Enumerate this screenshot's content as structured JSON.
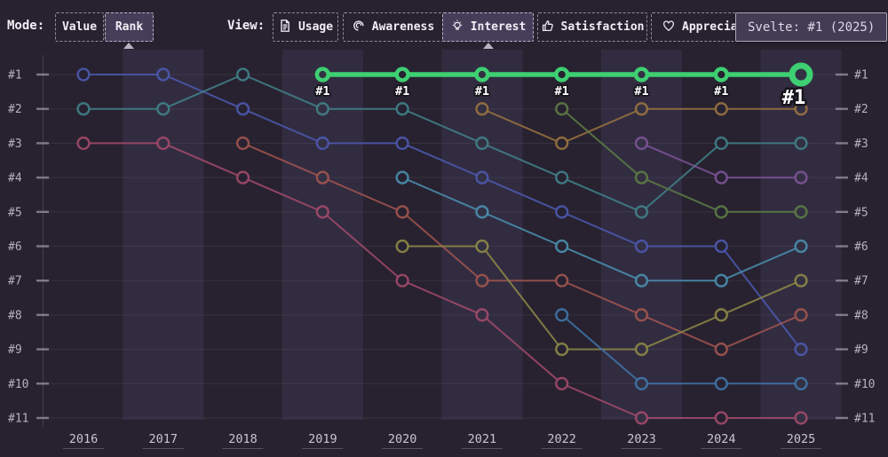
{
  "toolbar": {
    "mode_label": "Mode:",
    "modes": [
      {
        "label": "Value",
        "selected": false
      },
      {
        "label": "Rank",
        "selected": true
      }
    ],
    "view_label": "View:",
    "views": [
      {
        "label": "Usage",
        "icon": "document-icon",
        "selected": false
      },
      {
        "label": "Awareness",
        "icon": "ear-icon",
        "selected": false
      },
      {
        "label": "Interest",
        "icon": "lightbulb-icon",
        "selected": true
      },
      {
        "label": "Satisfaction",
        "icon": "thumbs-up-icon",
        "selected": false
      },
      {
        "label": "Appreciation",
        "icon": "heart-icon",
        "selected": false
      }
    ]
  },
  "tooltip": {
    "text": "Svelte: #1 (2025)"
  },
  "chart_data": {
    "type": "line",
    "subtype": "bump-rank-chart",
    "title": "",
    "x_labels": [
      "2016",
      "2017",
      "2018",
      "2019",
      "2020",
      "2021",
      "2022",
      "2023",
      "2024",
      "2025"
    ],
    "rank_labels_left": [
      "#1",
      "#2",
      "#3",
      "#4",
      "#5",
      "#6",
      "#7",
      "#8",
      "#9",
      "#10",
      "#11"
    ],
    "rank_labels_right": [
      "#1",
      "#2",
      "#3",
      "#4",
      "#5",
      "#6",
      "#7",
      "#8",
      "#9",
      "#10",
      "#11"
    ],
    "ylim": [
      1,
      11
    ],
    "grid": true,
    "legend": "none",
    "highlighted_series_tooltip": "Svelte: #1 (2025)",
    "series": [
      {
        "id": "indigo",
        "color": "#4c59b0",
        "highlight": false,
        "ranks": [
          1,
          1,
          2,
          3,
          3,
          4,
          5,
          6,
          6,
          9
        ]
      },
      {
        "id": "teal",
        "color": "#41828a",
        "highlight": false,
        "ranks": [
          2,
          2,
          1,
          2,
          2,
          3,
          4,
          5,
          3,
          3
        ]
      },
      {
        "id": "crimson",
        "color": "#a34a6b",
        "highlight": false,
        "ranks": [
          3,
          3,
          4,
          5,
          7,
          8,
          10,
          11,
          11,
          11
        ]
      },
      {
        "id": "brick",
        "color": "#a2554f",
        "highlight": false,
        "ranks": [
          null,
          null,
          3,
          4,
          5,
          7,
          7,
          8,
          9,
          8
        ]
      },
      {
        "id": "cyan",
        "color": "#4a90b0",
        "highlight": false,
        "ranks": [
          null,
          null,
          null,
          null,
          4,
          5,
          6,
          7,
          7,
          6
        ]
      },
      {
        "id": "olive",
        "color": "#8e8947",
        "highlight": false,
        "ranks": [
          null,
          null,
          null,
          null,
          6,
          6,
          9,
          9,
          8,
          7
        ]
      },
      {
        "id": "amber",
        "color": "#9a7340",
        "highlight": false,
        "ranks": [
          null,
          null,
          null,
          null,
          null,
          2,
          3,
          2,
          2,
          2
        ]
      },
      {
        "id": "darkgreen",
        "color": "#5d7d45",
        "highlight": false,
        "ranks": [
          null,
          null,
          null,
          null,
          null,
          null,
          2,
          4,
          5,
          5
        ]
      },
      {
        "id": "steelblue",
        "color": "#3f75aa",
        "highlight": false,
        "ranks": [
          null,
          null,
          null,
          null,
          null,
          null,
          8,
          10,
          10,
          10
        ]
      },
      {
        "id": "purple",
        "color": "#7d5499",
        "highlight": false,
        "ranks": [
          null,
          null,
          null,
          null,
          null,
          null,
          null,
          3,
          4,
          4
        ]
      },
      {
        "id": "svelte",
        "label": "Svelte",
        "color": "#3ecf72",
        "highlight": true,
        "point_label": "#1",
        "ranks": [
          null,
          null,
          null,
          1,
          1,
          1,
          1,
          1,
          1,
          1
        ]
      }
    ]
  },
  "colors": {
    "background": "#282230",
    "band": "#3b3450",
    "grid": "#ffffff",
    "axis": "#403a4a",
    "tick": "#9b95a6",
    "rank_label": "#b6b1bf",
    "year_label": "#c9c4d2",
    "point_label_fill": "#ffffff",
    "point_label_stroke": "#17141c",
    "circle_fill_dark": "#272231",
    "circle_fill_band": "#343043"
  }
}
